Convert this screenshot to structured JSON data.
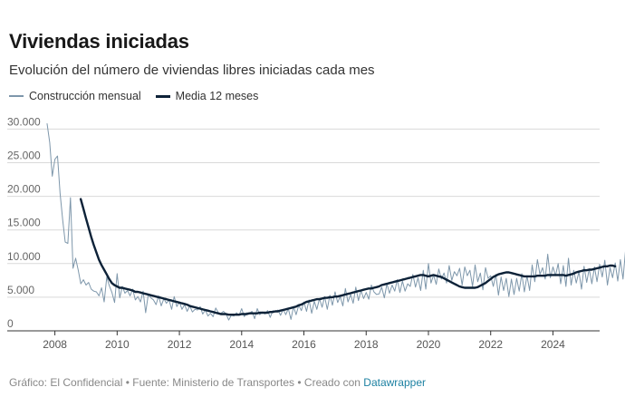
{
  "title": "Viviendas iniciadas",
  "subtitle": "Evolución del número de viviendas libres iniciadas cada mes",
  "legend": [
    {
      "label": "Construcción mensual",
      "color": "#7e97ab"
    },
    {
      "label": "Media 12 meses",
      "color": "#0d2238"
    }
  ],
  "footer": {
    "grafico": "Gráfico: El Confidencial",
    "sep": " • ",
    "fuente": "Fuente: Ministerio de Transportes",
    "creado": "Creado con ",
    "tool": "Datawrapper"
  },
  "chart_data": {
    "type": "line",
    "x_label_ticks": [
      "2008",
      "2010",
      "2012",
      "2014",
      "2016",
      "2018",
      "2020",
      "2022",
      "2024"
    ],
    "y_ticks": [
      0,
      5000,
      10000,
      15000,
      20000,
      25000,
      30000
    ],
    "y_tick_labels": [
      "0",
      "5.000",
      "10.000",
      "15.000",
      "20.000",
      "25.000",
      "30.000"
    ],
    "ylim": [
      0,
      31000
    ],
    "xlim": [
      2007.75,
      2025.5
    ],
    "grid": true,
    "legend_position": "top-left",
    "series": [
      {
        "name": "Construcción mensual",
        "color": "#7e97ab",
        "start": 2007.75,
        "step_years": 0.0833333,
        "values": [
          30800,
          28000,
          23000,
          25500,
          26000,
          20500,
          16500,
          13200,
          13000,
          19800,
          9300,
          10800,
          9000,
          7000,
          7600,
          6800,
          7200,
          6200,
          5900,
          5800,
          5200,
          6400,
          4300,
          8000,
          6700,
          5700,
          4200,
          8500,
          4900,
          6600,
          5600,
          6000,
          5200,
          6200,
          4600,
          5100,
          4300,
          5900,
          2700,
          5400,
          4900,
          4600,
          3900,
          5200,
          3700,
          4800,
          4100,
          4600,
          3200,
          5100,
          3600,
          4300,
          3200,
          3900,
          2900,
          3700,
          2800,
          3200,
          3100,
          3600,
          2500,
          3100,
          2200,
          2600,
          2100,
          3400,
          2700,
          2600,
          2900,
          2500,
          1600,
          2300,
          2200,
          2700,
          2300,
          3300,
          2100,
          2700,
          2600,
          2900,
          1800,
          3300,
          2400,
          2800,
          2500,
          3000,
          2000,
          3000,
          2800,
          3100,
          2300,
          3200,
          2400,
          3300,
          1700,
          3600,
          2400,
          3800,
          3000,
          4300,
          2900,
          4600,
          2600,
          4400,
          3200,
          4800,
          3500,
          5100,
          3200,
          5300,
          3800,
          5800,
          4200,
          5100,
          3700,
          6300,
          4300,
          5400,
          4100,
          6500,
          4500,
          6000,
          4800,
          5700,
          4700,
          6800,
          5800,
          5400,
          5500,
          6500,
          4900,
          7000,
          5600,
          6800,
          5900,
          7600,
          5700,
          7400,
          5900,
          7000,
          6600,
          8400,
          6500,
          7900,
          6000,
          9000,
          6200,
          10000,
          7100,
          8300,
          6900,
          9200,
          7700,
          8600,
          7100,
          9700,
          7500,
          8800,
          8200,
          9300,
          6800,
          9500,
          8200,
          9000,
          6600,
          9800,
          7300,
          8600,
          6100,
          9400,
          7800,
          8200,
          6600,
          8400,
          5300,
          8000,
          6000,
          7800,
          5100,
          7700,
          5400,
          7800,
          5900,
          8500,
          5800,
          8200,
          6000,
          9800,
          7300,
          10600,
          8400,
          9400,
          7700,
          11400,
          7900,
          9500,
          8200,
          10000,
          7000,
          9700,
          6600,
          10800,
          6800,
          9000,
          7100,
          8800,
          6200,
          9600,
          7200,
          9200,
          7000,
          9500,
          7300,
          9900,
          8000,
          10500,
          6800,
          9400,
          7900,
          10100,
          7400,
          10600,
          7700,
          12000,
          7800,
          11000,
          7500,
          12100,
          6800,
          11500,
          10500,
          9800,
          9900
        ]
      },
      {
        "name": "Media 12 meses",
        "color": "#0d2238",
        "start": 2008.83,
        "step_years": 0.0833333,
        "values": [
          19600,
          18200,
          16800,
          15400,
          14000,
          12800,
          11700,
          10600,
          9800,
          9100,
          8400,
          7700,
          7100,
          6800,
          6600,
          6400,
          6400,
          6300,
          6200,
          6100,
          6000,
          5800,
          5800,
          5700,
          5600,
          5500,
          5400,
          5300,
          5200,
          5100,
          5000,
          4900,
          4800,
          4700,
          4600,
          4500,
          4400,
          4300,
          4200,
          4100,
          4000,
          3900,
          3700,
          3600,
          3500,
          3400,
          3300,
          3200,
          3100,
          3000,
          2900,
          2800,
          2700,
          2600,
          2500,
          2500,
          2500,
          2400,
          2400,
          2400,
          2400,
          2400,
          2500,
          2500,
          2500,
          2600,
          2600,
          2600,
          2600,
          2700,
          2700,
          2700,
          2700,
          2800,
          2800,
          2900,
          2900,
          3000,
          3100,
          3200,
          3300,
          3400,
          3500,
          3600,
          3800,
          3900,
          4100,
          4300,
          4400,
          4500,
          4600,
          4700,
          4700,
          4800,
          4900,
          4900,
          5000,
          5000,
          5100,
          5100,
          5200,
          5300,
          5400,
          5500,
          5600,
          5700,
          5800,
          5900,
          6000,
          6100,
          6200,
          6300,
          6300,
          6400,
          6500,
          6600,
          6800,
          6900,
          7000,
          7100,
          7200,
          7300,
          7400,
          7500,
          7600,
          7700,
          7800,
          7900,
          8000,
          8100,
          8200,
          8300,
          8300,
          8200,
          8100,
          8200,
          8300,
          8200,
          8100,
          8000,
          7800,
          7600,
          7400,
          7200,
          7000,
          6800,
          6600,
          6500,
          6400,
          6400,
          6400,
          6400,
          6400,
          6500,
          6700,
          6900,
          7100,
          7400,
          7700,
          8000,
          8200,
          8400,
          8500,
          8600,
          8700,
          8700,
          8600,
          8500,
          8400,
          8300,
          8200,
          8100,
          8100,
          8100,
          8100,
          8100,
          8200,
          8200,
          8200,
          8200,
          8300,
          8300,
          8300,
          8300,
          8300,
          8300,
          8300,
          8200,
          8300,
          8400,
          8500,
          8700,
          8800,
          8900,
          9000,
          9000,
          9100,
          9100,
          9200,
          9300,
          9400,
          9500,
          9600,
          9600,
          9700,
          9700,
          9600
        ]
      }
    ]
  }
}
